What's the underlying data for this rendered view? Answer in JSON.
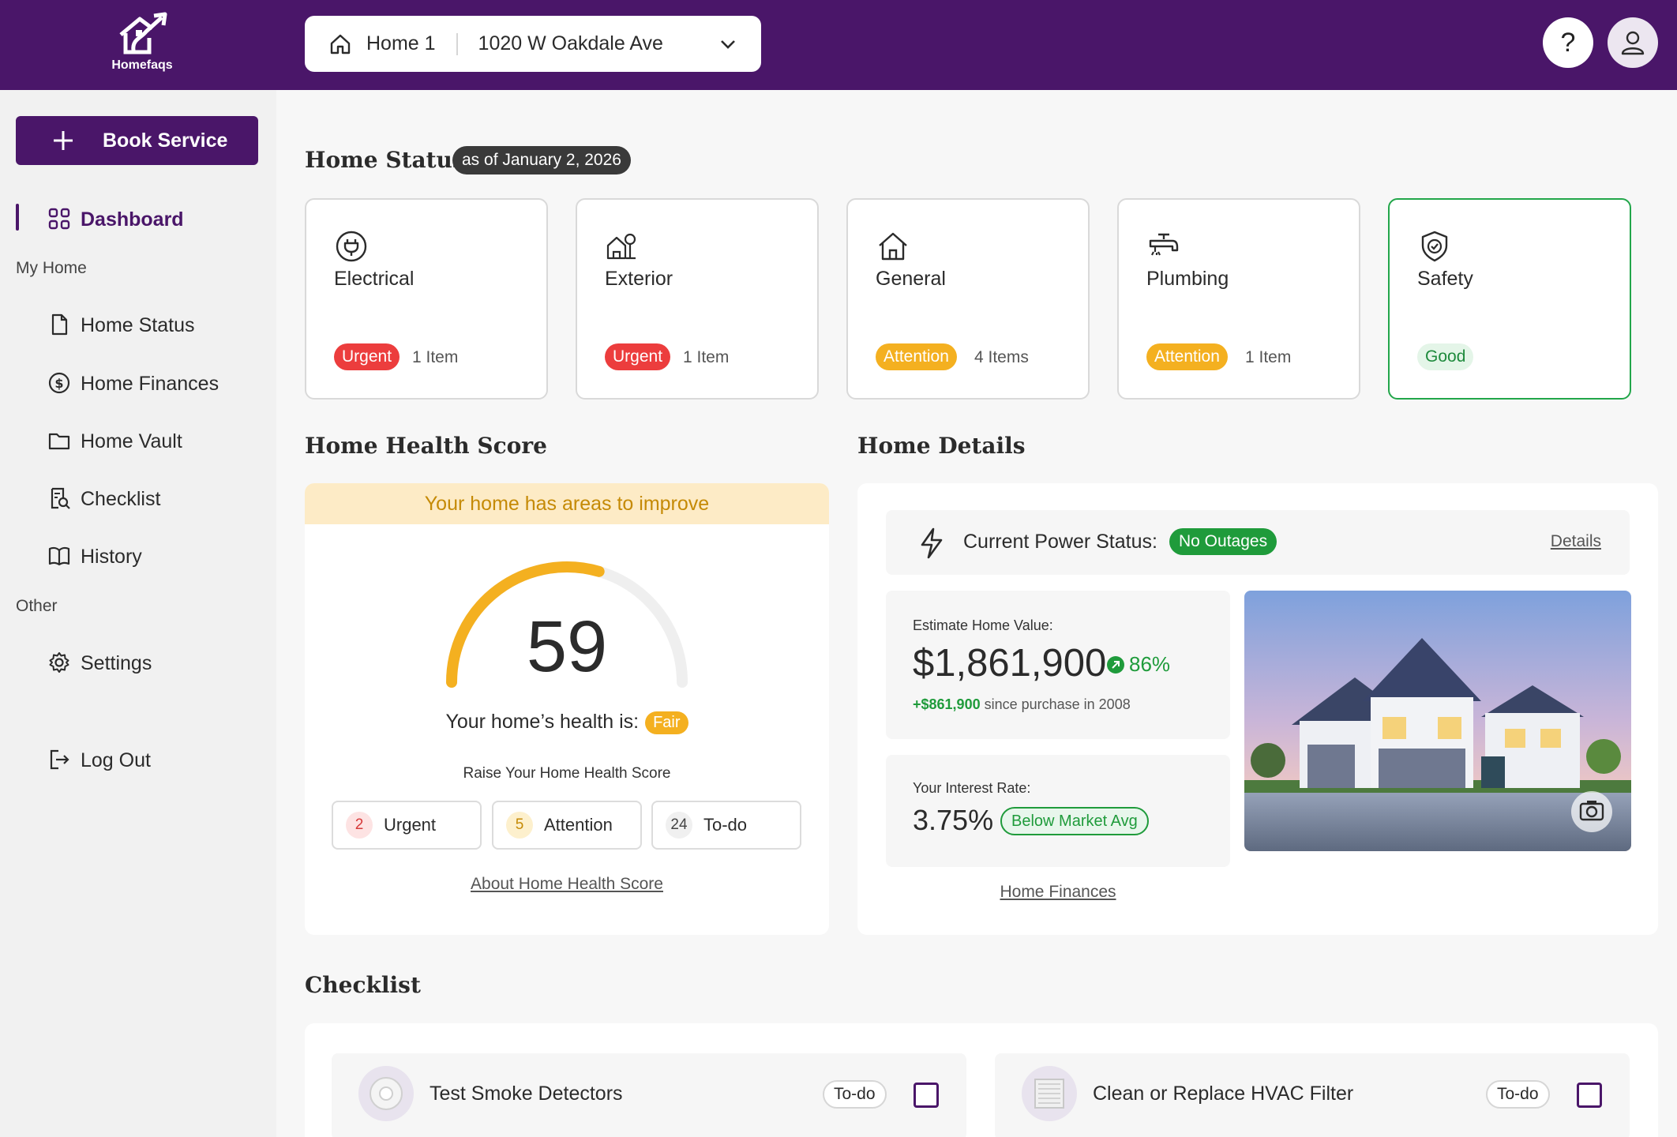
{
  "brand": {
    "name": "Homefaqs"
  },
  "home_selector": {
    "home": "Home 1",
    "address": "1020 W Oakdale Ave"
  },
  "header": {
    "help_label": "?"
  },
  "sidebar": {
    "book_label": "Book Service",
    "dashboard": "Dashboard",
    "group_my_home": "My Home",
    "items": [
      "Home Status",
      "Home Finances",
      "Home Vault",
      "Checklist",
      "History"
    ],
    "group_other": "Other",
    "settings": "Settings",
    "logout": "Log Out"
  },
  "home_status": {
    "title": "Home Status",
    "as_of": "as of January 2, 2026",
    "cards": [
      {
        "name": "Electrical",
        "status": "Urgent",
        "count": "1 Item",
        "icon": "plug-icon"
      },
      {
        "name": "Exterior",
        "status": "Urgent",
        "count": "1 Item",
        "icon": "tree-house-icon"
      },
      {
        "name": "General",
        "status": "Attention",
        "count": "4 Items",
        "icon": "house-icon"
      },
      {
        "name": "Plumbing",
        "status": "Attention",
        "count": "1 Item",
        "icon": "faucet-icon"
      },
      {
        "name": "Safety",
        "status": "Good",
        "count": "",
        "icon": "shield-check-icon"
      }
    ]
  },
  "health": {
    "title": "Home Health Score",
    "banner": "Your home has areas to improve",
    "score": "59",
    "score_fraction": 0.59,
    "line": "Your home’s health is:",
    "rating": "Fair",
    "raise": "Raise Your Home Health Score",
    "urgent_count": "2",
    "urgent_label": "Urgent",
    "attention_count": "5",
    "attention_label": "Attention",
    "todo_count": "24",
    "todo_label": "To-do",
    "about_link": "About Home Health Score"
  },
  "details": {
    "title": "Home Details",
    "power_label": "Current Power Status:",
    "power_status": "No Outages",
    "details_link": "Details",
    "value_caption": "Estimate Home Value:",
    "value": "$1,861,900",
    "value_change": "86%",
    "gain": "+$861,900",
    "since": " since purchase in 2008",
    "rate_caption": "Your Interest Rate:",
    "rate": "3.75%",
    "rate_badge": "Below Market Avg",
    "finances_link": "Home Finances"
  },
  "checklist": {
    "title": "Checklist",
    "items": [
      {
        "title": "Test Smoke Detectors",
        "tag": "To-do"
      },
      {
        "title": "Clean or Replace HVAC Filter",
        "tag": "To-do"
      }
    ]
  },
  "colors": {
    "brand": "#4a1669",
    "urgent": "#ec3d3d",
    "attention": "#f4b020",
    "good": "#1f9b3b"
  }
}
